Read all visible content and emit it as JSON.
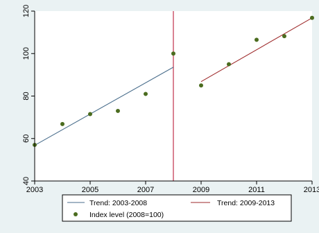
{
  "chart_data": {
    "type": "scatter",
    "x_ticks": [
      2003,
      2005,
      2007,
      2009,
      2011,
      2013
    ],
    "y_ticks": [
      40,
      60,
      80,
      100,
      120
    ],
    "xlim": [
      2003,
      2013
    ],
    "ylim": [
      40,
      120
    ],
    "grid": false,
    "legend_position": "bottom",
    "vertical_line": {
      "x": 2008,
      "color": "#c0304a"
    },
    "series": [
      {
        "name": "Trend: 2003-2008",
        "kind": "line",
        "color": "#4a6e8c",
        "x": [
          2003,
          2008
        ],
        "y": [
          56.8,
          93.6
        ]
      },
      {
        "name": "Trend: 2009-2013",
        "kind": "line",
        "color": "#9e2a2b",
        "x": [
          2009,
          2013
        ],
        "y": [
          86.8,
          116.8
        ]
      },
      {
        "name": "Index level (2008=100)",
        "kind": "scatter",
        "color": "#4b6c1f",
        "x": [
          2003,
          2004,
          2005,
          2006,
          2007,
          2008,
          2009,
          2010,
          2011,
          2012,
          2013
        ],
        "y": [
          57,
          66.8,
          71.5,
          73,
          81,
          100,
          85,
          95,
          106.5,
          108.2,
          116.8
        ]
      }
    ]
  }
}
